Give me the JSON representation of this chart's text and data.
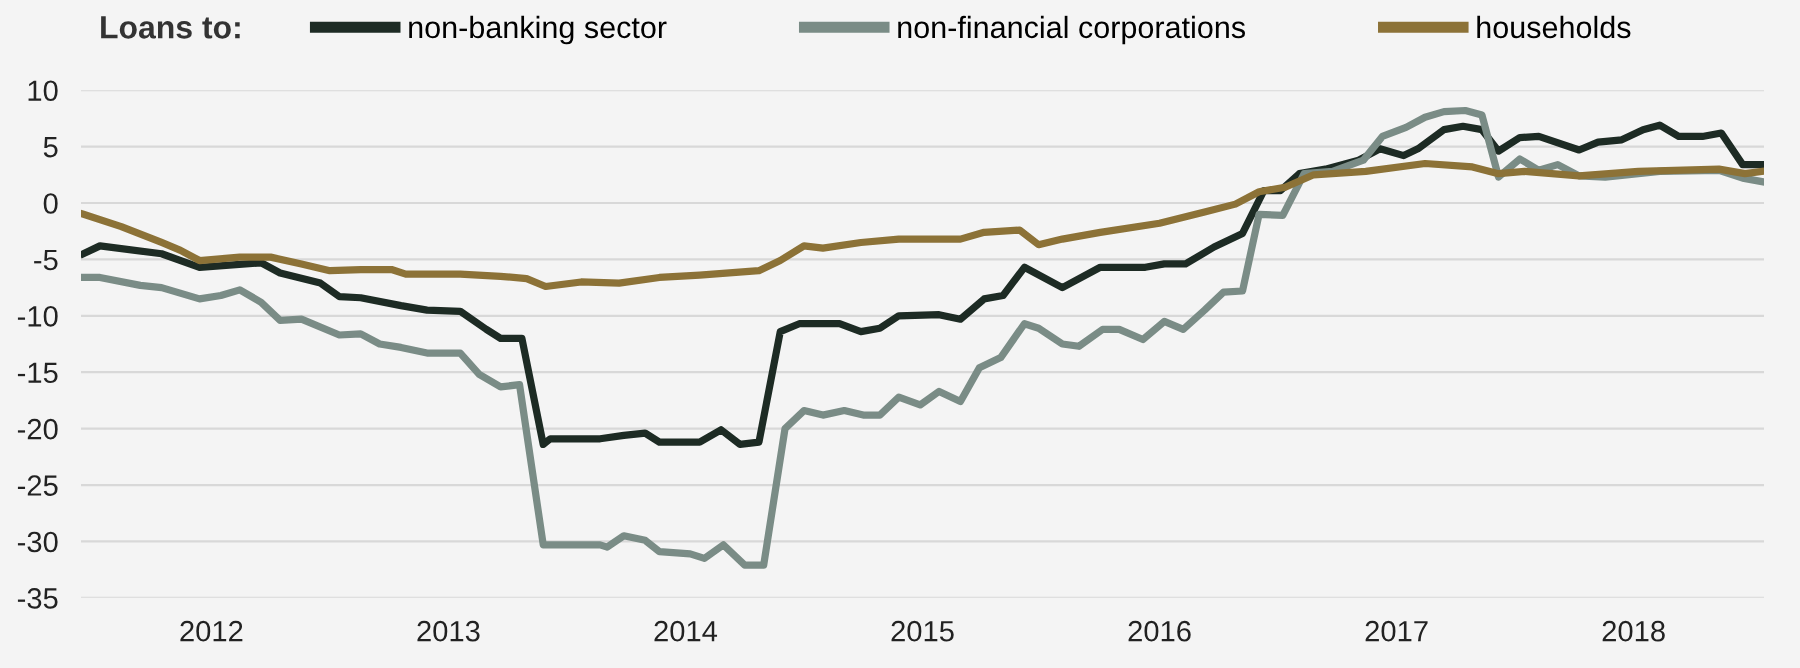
{
  "chart_data": {
    "type": "line",
    "legend_title": "Loans to:",
    "legend": "top",
    "series": [
      {
        "name": "non-banking sector",
        "color": "#1d2b24",
        "x": [
          2011.96,
          2012.03,
          2012.29,
          2012.45,
          2012.71,
          2012.79,
          2012.96,
          2013.04,
          2013.13,
          2013.3,
          2013.41,
          2013.55,
          2013.66,
          2013.72,
          2013.81,
          2013.9,
          2013.93,
          2014.14,
          2014.24,
          2014.33,
          2014.39,
          2014.56,
          2014.65,
          2014.73,
          2014.81,
          2014.9,
          2014.98,
          2015.15,
          2015.24,
          2015.32,
          2015.4,
          2015.57,
          2015.66,
          2015.76,
          2015.84,
          2015.93,
          2016.09,
          2016.25,
          2016.44,
          2016.52,
          2016.61,
          2016.73,
          2016.85,
          2016.94,
          2017.01,
          2017.09,
          2017.2,
          2017.34,
          2017.43,
          2017.53,
          2017.59,
          2017.7,
          2017.78,
          2017.86,
          2017.93,
          2018.02,
          2018.1,
          2018.27,
          2018.35,
          2018.45,
          2018.54,
          2018.61,
          2018.69,
          2018.79,
          2018.87,
          2018.96,
          2019.04
        ],
        "values": [
          -4.5,
          -3.8,
          -4.5,
          -5.7,
          -5.3,
          -6.2,
          -7.1,
          -8.3,
          -8.4,
          -9.1,
          -9.5,
          -9.6,
          -11.2,
          -12,
          -12,
          -21.4,
          -20.9,
          -20.9,
          -20.6,
          -20.4,
          -21.2,
          -21.2,
          -20.1,
          -21.4,
          -21.2,
          -11.4,
          -10.7,
          -10.7,
          -11.4,
          -11.1,
          -10.0,
          -9.9,
          -10.3,
          -8.5,
          -8.2,
          -5.7,
          -7.5,
          -5.7,
          -5.7,
          -5.4,
          -5.4,
          -3.9,
          -2.7,
          1.1,
          1.1,
          2.6,
          3.0,
          3.8,
          4.8,
          4.2,
          4.8,
          6.5,
          6.8,
          6.5,
          4.6,
          5.8,
          5.9,
          4.7,
          5.4,
          5.6,
          6.5,
          6.9,
          5.9,
          5.9,
          6.2,
          3.4,
          3.4
        ]
      },
      {
        "name": "non-financial corporations",
        "color": "#7a8c86",
        "x": [
          2011.96,
          2012.03,
          2012.2,
          2012.29,
          2012.45,
          2012.54,
          2012.62,
          2012.71,
          2012.79,
          2012.88,
          2013.04,
          2013.13,
          2013.21,
          2013.3,
          2013.41,
          2013.55,
          2013.63,
          2013.72,
          2013.8,
          2013.9,
          2014.14,
          2014.17,
          2014.24,
          2014.33,
          2014.39,
          2014.52,
          2014.58,
          2014.66,
          2014.75,
          2014.83,
          2014.92,
          2015.0,
          2015.08,
          2015.17,
          2015.25,
          2015.32,
          2015.4,
          2015.49,
          2015.57,
          2015.66,
          2015.74,
          2015.83,
          2015.93,
          2015.99,
          2016.09,
          2016.16,
          2016.26,
          2016.33,
          2016.43,
          2016.52,
          2016.6,
          2016.69,
          2016.77,
          2016.85,
          2016.92,
          2017.02,
          2017.11,
          2017.23,
          2017.36,
          2017.44,
          2017.54,
          2017.62,
          2017.7,
          2017.79,
          2017.86,
          2017.93,
          2018.02,
          2018.1,
          2018.18,
          2018.27,
          2018.38,
          2018.61,
          2018.86,
          2018.96,
          2019.04
        ],
        "values": [
          -6.6,
          -6.6,
          -7.3,
          -7.5,
          -8.5,
          -8.2,
          -7.7,
          -8.8,
          -10.4,
          -10.3,
          -11.7,
          -11.6,
          -12.5,
          -12.8,
          -13.3,
          -13.3,
          -15.2,
          -16.3,
          -16.1,
          -30.3,
          -30.3,
          -30.5,
          -29.5,
          -29.9,
          -30.9,
          -31.1,
          -31.5,
          -30.3,
          -32.1,
          -32.1,
          -20,
          -18.4,
          -18.8,
          -18.4,
          -18.8,
          -18.8,
          -17.2,
          -17.9,
          -16.7,
          -17.6,
          -14.6,
          -13.7,
          -10.7,
          -11.1,
          -12.5,
          -12.7,
          -11.2,
          -11.2,
          -12.1,
          -10.5,
          -11.2,
          -9.5,
          -7.9,
          -7.8,
          -1.0,
          -1.1,
          2.6,
          2.8,
          3.8,
          5.9,
          6.7,
          7.6,
          8.1,
          8.2,
          7.8,
          2.3,
          3.9,
          2.9,
          3.4,
          2.4,
          2.3,
          2.8,
          2.9,
          2.2,
          1.9
        ]
      },
      {
        "name": "households",
        "color": "#8c7237",
        "x": [
          2011.96,
          2012.12,
          2012.29,
          2012.37,
          2012.45,
          2012.62,
          2012.75,
          2012.88,
          2013.0,
          2013.13,
          2013.26,
          2013.32,
          2013.55,
          2013.72,
          2013.83,
          2013.91,
          2014.06,
          2014.22,
          2014.39,
          2014.56,
          2014.81,
          2014.9,
          2015.0,
          2015.08,
          2015.24,
          2015.4,
          2015.66,
          2015.76,
          2015.91,
          2015.99,
          2016.09,
          2016.25,
          2016.5,
          2016.69,
          2016.82,
          2016.92,
          2017.03,
          2017.15,
          2017.37,
          2017.62,
          2017.82,
          2017.93,
          2018.04,
          2018.27,
          2018.52,
          2018.86,
          2018.97,
          2019.04
        ],
        "values": [
          -1.0,
          -2.1,
          -3.5,
          -4.2,
          -5.1,
          -4.8,
          -4.8,
          -5.4,
          -6.0,
          -5.9,
          -5.9,
          -6.3,
          -6.3,
          -6.5,
          -6.7,
          -7.4,
          -7.0,
          -7.1,
          -6.6,
          -6.4,
          -6.0,
          -5.1,
          -3.8,
          -4.0,
          -3.5,
          -3.2,
          -3.2,
          -2.6,
          -2.4,
          -3.7,
          -3.2,
          -2.6,
          -1.8,
          -0.8,
          -0.1,
          1.0,
          1.4,
          2.5,
          2.8,
          3.5,
          3.2,
          2.6,
          2.8,
          2.4,
          2.8,
          3.0,
          2.6,
          2.8
        ]
      }
    ],
    "xlim": [
      2011.95,
      2019.05
    ],
    "xticks": [
      {
        "value": 2012.5,
        "label": "2012"
      },
      {
        "value": 2013.5,
        "label": "2013"
      },
      {
        "value": 2014.5,
        "label": "2014"
      },
      {
        "value": 2015.5,
        "label": "2015"
      },
      {
        "value": 2016.5,
        "label": "2016"
      },
      {
        "value": 2017.5,
        "label": "2017"
      },
      {
        "value": 2018.5,
        "label": "2018"
      }
    ],
    "ylim": [
      -35,
      10
    ],
    "yticks": [
      -35,
      -30,
      -25,
      -20,
      -15,
      -10,
      -5,
      0,
      5,
      10
    ],
    "grid": "y",
    "marker": "none",
    "line_style": "solid"
  }
}
